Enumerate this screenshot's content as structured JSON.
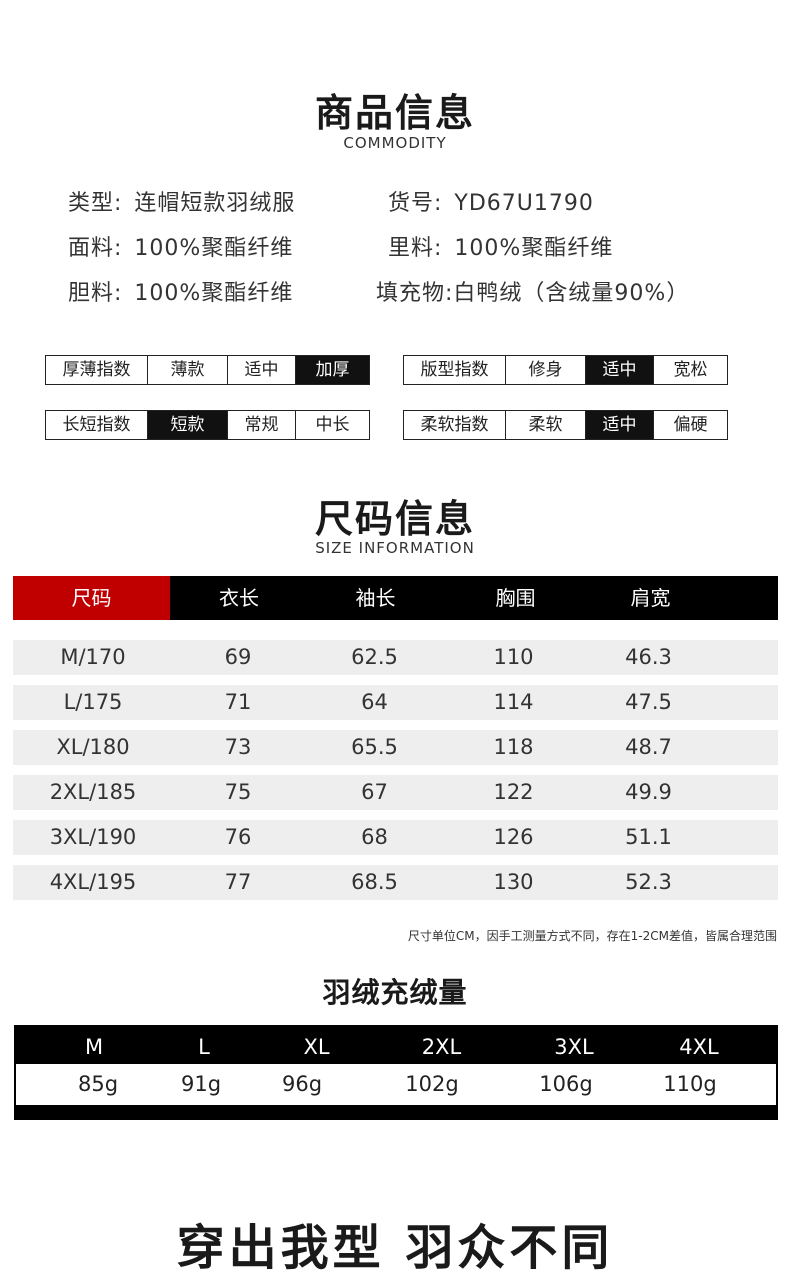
{
  "commodity": {
    "title": "商品信息",
    "subtitle": "COMMODITY"
  },
  "info": {
    "type_label": "类型:",
    "type_value": "连帽短款羽绒服",
    "sku_label": "货号:",
    "sku_value": "YD67U1790",
    "fabric_label": "面料:",
    "fabric_value": "100%聚酯纤维",
    "lining_label": "里料:",
    "lining_value": "100%聚酯纤维",
    "liner_label": "胆料:",
    "liner_value": "100%聚酯纤维",
    "filling_label": "填充物:",
    "filling_value": "白鸭绒（含绒量90%）"
  },
  "indexes": {
    "thickness": {
      "label": "厚薄指数",
      "options": [
        "薄款",
        "适中",
        "加厚"
      ],
      "selected": 2
    },
    "fit": {
      "label": "版型指数",
      "options": [
        "修身",
        "适中",
        "宽松"
      ],
      "selected": 1
    },
    "length": {
      "label": "长短指数",
      "options": [
        "短款",
        "常规",
        "中长"
      ],
      "selected": 0
    },
    "softness": {
      "label": "柔软指数",
      "options": [
        "柔软",
        "适中",
        "偏硬"
      ],
      "selected": 1
    }
  },
  "size_info": {
    "title": "尺码信息",
    "subtitle": "SIZE INFORMATION",
    "headers": [
      "尺码",
      "衣长",
      "袖长",
      "胸围",
      "肩宽"
    ],
    "rows": [
      [
        "M/170",
        "69",
        "62.5",
        "110",
        "46.3"
      ],
      [
        "L/175",
        "71",
        "64",
        "114",
        "47.5"
      ],
      [
        "XL/180",
        "73",
        "65.5",
        "118",
        "48.7"
      ],
      [
        "2XL/185",
        "75",
        "67",
        "122",
        "49.9"
      ],
      [
        "3XL/190",
        "76",
        "68",
        "126",
        "51.1"
      ],
      [
        "4XL/195",
        "77",
        "68.5",
        "130",
        "52.3"
      ]
    ],
    "note": "尺寸单位CM，因手工测量方式不同，存在1-2CM差值，皆属合理范围"
  },
  "down_fill": {
    "title": "羽绒充绒量",
    "sizes": [
      "M",
      "L",
      "XL",
      "2XL",
      "3XL",
      "4XL"
    ],
    "values": [
      "85g",
      "91g",
      "96g",
      "102g",
      "106g",
      "110g"
    ]
  },
  "slogan": "穿出我型 羽众不同",
  "colors": {
    "accent_red": "#c00000",
    "black": "#000000",
    "row_gray": "#eeeeee"
  }
}
